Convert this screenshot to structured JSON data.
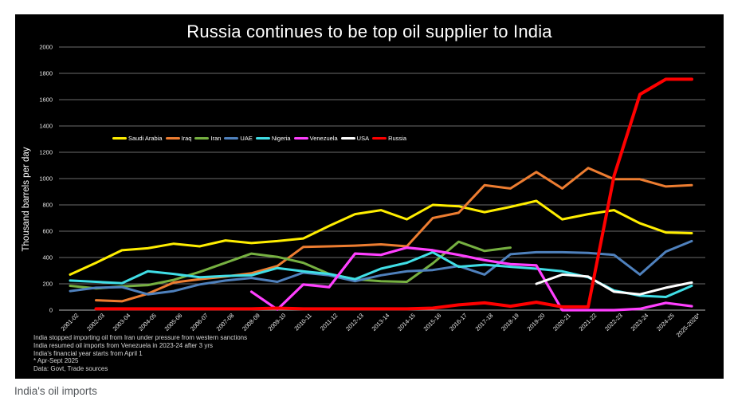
{
  "title": "Russia continues to be top oil supplier to India",
  "caption": "India's oil imports",
  "footnotes": [
    "India stopped importing oil from Iran under pressure from western sanctions",
    "India resumed oil imports from Venezuela in 2023-24 after 3 yrs",
    "India's financial year starts from April 1",
    "* Apr-Sept 2025",
    "Data: Govt, Trade sources"
  ],
  "colors": {
    "background": "#000000",
    "grid": "#6b6b6b",
    "axis": "#b7b7b7",
    "tick_text": "#e8e8e8"
  },
  "chart_data": {
    "type": "line",
    "title": "Russia continues to be top oil supplier to India",
    "ylabel": "Thousand barrels per day",
    "ylim": [
      0,
      2000
    ],
    "ytick_step": 200,
    "grid": true,
    "legend_position": "inside-top-left",
    "categories": [
      "2001-02",
      "2002-03",
      "2003-04",
      "2004-05",
      "2005-06",
      "2006-07",
      "2007-08",
      "2008-09",
      "2009-10",
      "2010-11",
      "2011-12",
      "2012-13",
      "2013-14",
      "2014-15",
      "2015-16",
      "2016-17",
      "2017-18",
      "2018-19",
      "2019-20",
      "2020-21",
      "2021-22",
      "2022-23",
      "2023-24",
      "2024-25",
      "2025-2026*"
    ],
    "series": [
      {
        "name": "Saudi Arabia",
        "color": "#ffee00",
        "width": 3,
        "values": [
          270,
          360,
          455,
          470,
          505,
          485,
          530,
          510,
          525,
          545,
          640,
          730,
          760,
          690,
          800,
          790,
          745,
          785,
          830,
          690,
          730,
          760,
          660,
          590,
          585
        ]
      },
      {
        "name": "Iraq",
        "color": "#ed7d31",
        "width": 3,
        "values": [
          null,
          75,
          67,
          125,
          210,
          235,
          255,
          280,
          335,
          480,
          485,
          490,
          500,
          485,
          700,
          740,
          950,
          925,
          1050,
          925,
          1080,
          995,
          995,
          940,
          950
        ]
      },
      {
        "name": "Iran",
        "color": "#76b041",
        "width": 3,
        "values": [
          185,
          165,
          180,
          190,
          230,
          290,
          360,
          430,
          405,
          360,
          275,
          235,
          220,
          215,
          355,
          520,
          450,
          475,
          null,
          null,
          null,
          null,
          null,
          null,
          null
        ]
      },
      {
        "name": "UAE",
        "color": "#4f81bd",
        "width": 3,
        "values": [
          145,
          170,
          175,
          120,
          145,
          195,
          225,
          245,
          215,
          285,
          265,
          220,
          265,
          295,
          305,
          335,
          270,
          425,
          440,
          440,
          435,
          420,
          270,
          445,
          525
        ]
      },
      {
        "name": "Nigeria",
        "color": "#40dee6",
        "width": 3,
        "values": [
          225,
          215,
          205,
          295,
          275,
          250,
          260,
          265,
          320,
          295,
          275,
          235,
          315,
          360,
          440,
          330,
          345,
          330,
          315,
          295,
          250,
          150,
          110,
          100,
          185
        ]
      },
      {
        "name": "Venezuela",
        "color": "#ff40ff",
        "width": 3.2,
        "values": [
          null,
          null,
          null,
          null,
          null,
          null,
          null,
          140,
          5,
          195,
          175,
          430,
          420,
          475,
          455,
          420,
          380,
          350,
          340,
          0,
          0,
          0,
          10,
          55,
          30
        ]
      },
      {
        "name": "USA",
        "color": "#ffffff",
        "width": 3,
        "values": [
          null,
          null,
          null,
          null,
          null,
          null,
          null,
          null,
          null,
          null,
          null,
          null,
          null,
          null,
          null,
          null,
          null,
          null,
          200,
          270,
          255,
          140,
          120,
          170,
          210
        ]
      },
      {
        "name": "Russia",
        "color": "#ff0000",
        "width": 4,
        "values": [
          null,
          10,
          10,
          10,
          10,
          10,
          10,
          10,
          15,
          10,
          10,
          10,
          10,
          10,
          15,
          40,
          55,
          30,
          60,
          25,
          25,
          1020,
          1640,
          1755,
          1755
        ]
      }
    ]
  }
}
